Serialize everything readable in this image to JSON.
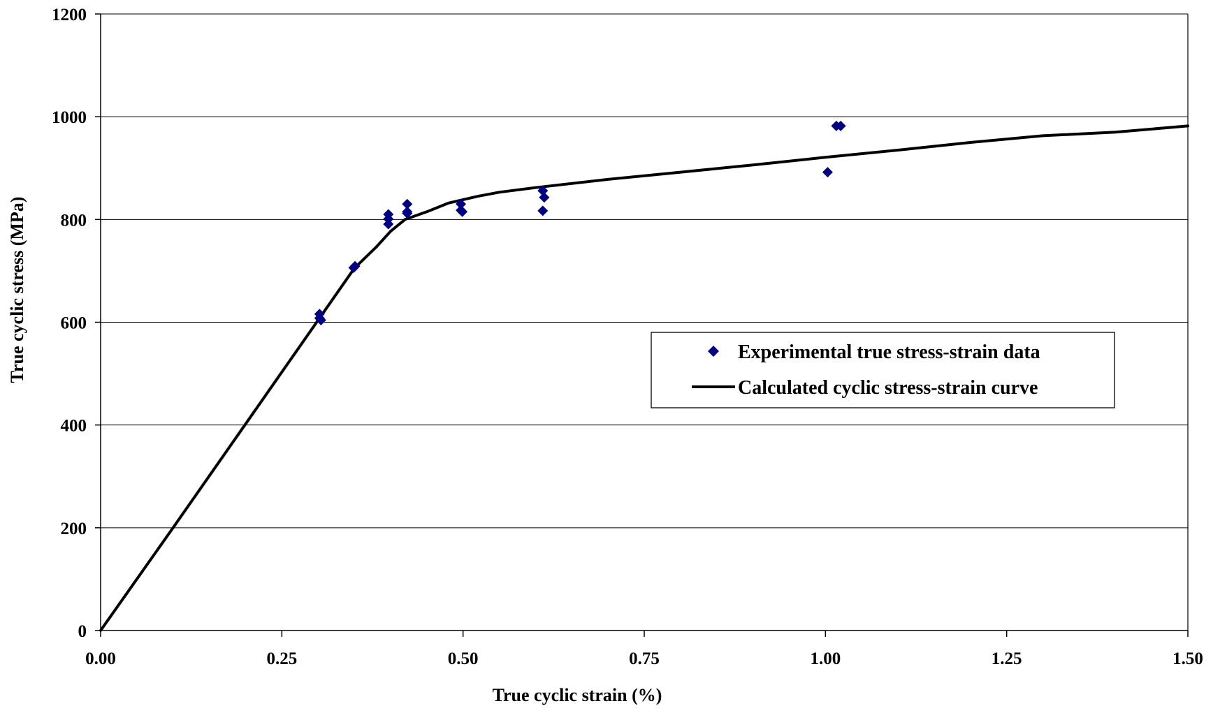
{
  "colors": {
    "marker": "#000080",
    "curve": "#000000",
    "grid": "#000000",
    "background": "#ffffff"
  },
  "chart_data": {
    "type": "scatter",
    "title": "",
    "xlabel": "True cyclic strain (%)",
    "ylabel": "True cyclic stress (MPa)",
    "xlim": [
      0,
      1.5
    ],
    "ylim": [
      0,
      1200
    ],
    "x_ticks": [
      0,
      0.25,
      0.5,
      0.75,
      1.0,
      1.25,
      1.5
    ],
    "x_tick_labels": [
      "0.00",
      "0.25",
      "0.50",
      "0.75",
      "1.00",
      "1.25",
      "1.50"
    ],
    "y_ticks": [
      0,
      200,
      400,
      600,
      800,
      1000,
      1200
    ],
    "y_tick_labels": [
      "0",
      "200",
      "400",
      "600",
      "800",
      "1000",
      "1200"
    ],
    "grid": "horizontal major gridlines",
    "legend_position": "center-right",
    "series": [
      {
        "name": "Experimental true stress-strain data",
        "kind": "scatter",
        "marker": "diamond",
        "points": [
          [
            0.302,
            616
          ],
          [
            0.302,
            608
          ],
          [
            0.304,
            604
          ],
          [
            0.349,
            706
          ],
          [
            0.351,
            709
          ],
          [
            0.397,
            810
          ],
          [
            0.397,
            801
          ],
          [
            0.397,
            791
          ],
          [
            0.423,
            830
          ],
          [
            0.423,
            815
          ],
          [
            0.423,
            812
          ],
          [
            0.497,
            830
          ],
          [
            0.497,
            818
          ],
          [
            0.499,
            815
          ],
          [
            0.61,
            856
          ],
          [
            0.612,
            843
          ],
          [
            0.61,
            817
          ],
          [
            1.003,
            892
          ],
          [
            1.015,
            982
          ],
          [
            1.021,
            982
          ]
        ]
      },
      {
        "name": "Calculated cyclic stress-strain curve",
        "kind": "line",
        "points": [
          [
            0,
            0
          ],
          [
            0.1,
            200
          ],
          [
            0.2,
            402
          ],
          [
            0.3,
            604
          ],
          [
            0.35,
            705
          ],
          [
            0.38,
            746
          ],
          [
            0.4,
            777
          ],
          [
            0.42,
            800
          ],
          [
            0.45,
            815
          ],
          [
            0.48,
            832
          ],
          [
            0.52,
            845
          ],
          [
            0.55,
            853
          ],
          [
            0.6,
            862
          ],
          [
            0.7,
            878
          ],
          [
            0.8,
            892
          ],
          [
            0.9,
            906
          ],
          [
            1.0,
            921
          ],
          [
            1.1,
            935
          ],
          [
            1.2,
            950
          ],
          [
            1.3,
            963
          ],
          [
            1.4,
            970
          ],
          [
            1.5,
            982
          ]
        ]
      }
    ]
  }
}
